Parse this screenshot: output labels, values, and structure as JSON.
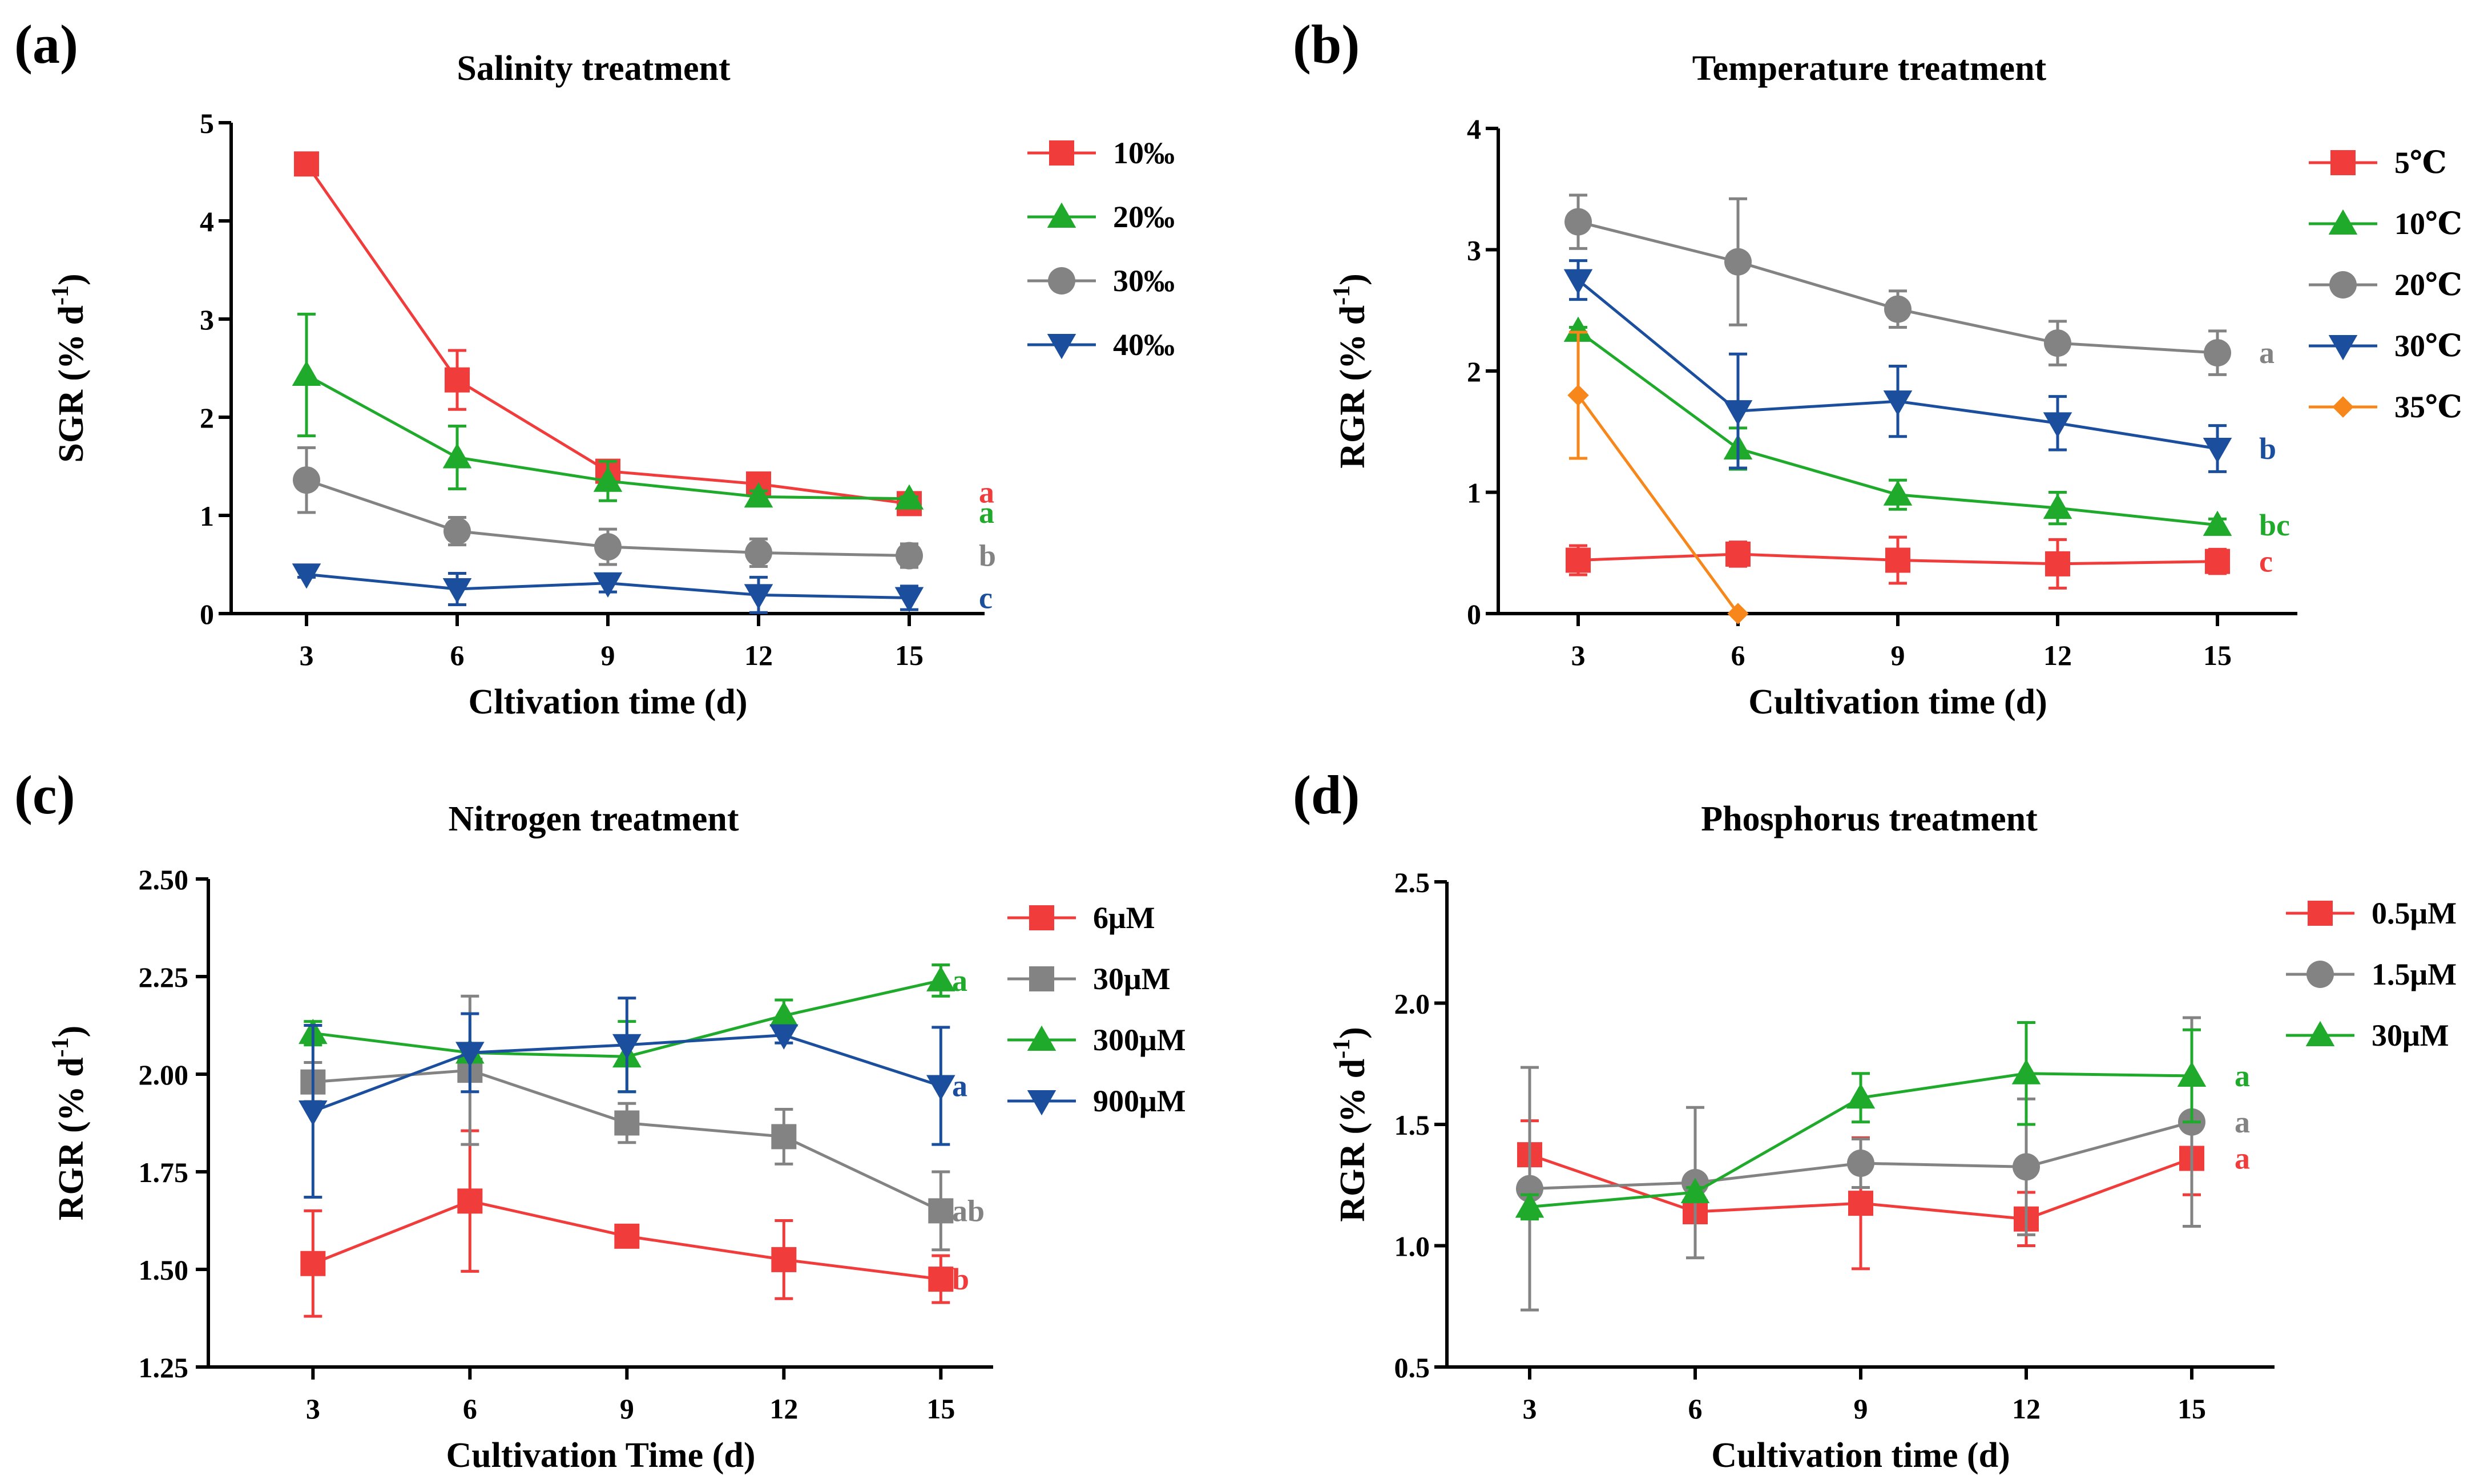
{
  "chart_data": [
    {
      "type": "line",
      "panel_label": "(a)",
      "title": "Salinity treatment",
      "xlabel": "Cltivation time (d)",
      "ylabel": "SGR (% d",
      "ylabel_sup": "-1",
      "ylabel_close": ")",
      "x": [
        3,
        6,
        9,
        12,
        15
      ],
      "xlim": [
        1.5,
        16.5
      ],
      "ylim": [
        0,
        5
      ],
      "yticks": [
        0,
        1,
        2,
        3,
        4,
        5
      ],
      "ytick_labels": [
        "0",
        "1",
        "2",
        "3",
        "4",
        "5"
      ],
      "xtick_labels": [
        "3",
        "6",
        "9",
        "12",
        "15"
      ],
      "series": [
        {
          "name": "10‰",
          "color": "#f13c3c",
          "marker": "square",
          "values": [
            4.58,
            2.38,
            1.45,
            1.32,
            1.12
          ],
          "errors": [
            0,
            0.3,
            0.1,
            0.08,
            0.04
          ],
          "letter": "a"
        },
        {
          "name": "20‰",
          "color": "#1faa2b",
          "marker": "triangle",
          "values": [
            2.43,
            1.59,
            1.35,
            1.19,
            1.17
          ],
          "errors": [
            0.62,
            0.32,
            0.2,
            0.06,
            0.02
          ],
          "letter": "a"
        },
        {
          "name": "30‰",
          "color": "#838383",
          "marker": "circle",
          "values": [
            1.36,
            0.84,
            0.68,
            0.62,
            0.59
          ],
          "errors": [
            0.33,
            0.14,
            0.18,
            0.14,
            0.12
          ],
          "letter": "b"
        },
        {
          "name": "40‰",
          "color": "#1b4f9e",
          "marker": "triangle-down",
          "values": [
            0.4,
            0.25,
            0.31,
            0.19,
            0.16
          ],
          "errors": [
            0.03,
            0.16,
            0.09,
            0.18,
            0.12
          ],
          "letter": "c"
        }
      ]
    },
    {
      "type": "line",
      "panel_label": "(b)",
      "title": "Temperature treatment",
      "xlabel": "Cultivation time (d)",
      "ylabel": "RGR (% d",
      "ylabel_sup": "-1",
      "ylabel_close": ")",
      "x": [
        3,
        6,
        9,
        12,
        15
      ],
      "xlim": [
        1.5,
        16.5
      ],
      "ylim": [
        0,
        4
      ],
      "yticks": [
        0,
        1,
        2,
        3,
        4
      ],
      "ytick_labels": [
        "0",
        "1",
        "2",
        "3",
        "4"
      ],
      "xtick_labels": [
        "3",
        "6",
        "9",
        "12",
        "15"
      ],
      "series": [
        {
          "name": "5℃",
          "color": "#f13c3c",
          "marker": "square",
          "values": [
            0.44,
            0.49,
            0.44,
            0.41,
            0.43
          ],
          "errors": [
            0.12,
            0.1,
            0.19,
            0.2,
            0.1
          ],
          "letter": "c"
        },
        {
          "name": "10℃",
          "color": "#1faa2b",
          "marker": "triangle",
          "values": [
            2.33,
            1.36,
            0.98,
            0.87,
            0.73
          ],
          "errors": [
            0.03,
            0.17,
            0.12,
            0.13,
            0.05
          ],
          "letter": "bc"
        },
        {
          "name": "20℃",
          "color": "#838383",
          "marker": "circle",
          "values": [
            3.23,
            2.9,
            2.51,
            2.23,
            2.15
          ],
          "errors": [
            0.22,
            0.52,
            0.15,
            0.18,
            0.18
          ],
          "letter": "a"
        },
        {
          "name": "30℃",
          "color": "#1b4f9e",
          "marker": "triangle-down",
          "values": [
            2.75,
            1.67,
            1.75,
            1.57,
            1.36
          ],
          "errors": [
            0.16,
            0.47,
            0.29,
            0.22,
            0.19
          ],
          "letter": "b"
        },
        {
          "name": "35℃",
          "color": "#f7871a",
          "marker": "diamond",
          "x": [
            3,
            6
          ],
          "values": [
            1.8,
            0.0
          ],
          "errors": [
            0.52,
            0
          ],
          "letter": ""
        }
      ]
    },
    {
      "type": "line",
      "panel_label": "(c)",
      "title": "Nitrogen treatment",
      "xlabel": "Cultivation Time (d)",
      "ylabel": "RGR (% d",
      "ylabel_sup": "-1",
      "ylabel_close": ")",
      "x": [
        3,
        6,
        9,
        12,
        15
      ],
      "xlim": [
        1,
        16
      ],
      "ylim": [
        1.25,
        2.5
      ],
      "yticks": [
        1.25,
        1.5,
        1.75,
        2.0,
        2.25,
        2.5
      ],
      "ytick_labels": [
        "1.25",
        "1.50",
        "1.75",
        "2.00",
        "2.25",
        "2.50"
      ],
      "xtick_labels": [
        "3",
        "6",
        "9",
        "12",
        "15"
      ],
      "series": [
        {
          "name": "6μM",
          "color": "#f13c3c",
          "marker": "square",
          "values": [
            1.515,
            1.675,
            1.585,
            1.525,
            1.475
          ],
          "errors": [
            0.135,
            0.18,
            0.01,
            0.1,
            0.06
          ],
          "letter": "b"
        },
        {
          "name": "30μM",
          "color": "#838383",
          "marker": "square",
          "values": [
            1.98,
            2.01,
            1.875,
            1.84,
            1.65
          ],
          "errors": [
            0.05,
            0.19,
            0.05,
            0.07,
            0.1
          ],
          "letter": "ab"
        },
        {
          "name": "300μM",
          "color": "#1faa2b",
          "marker": "triangle",
          "values": [
            2.105,
            2.055,
            2.045,
            2.15,
            2.24
          ],
          "errors": [
            0.03,
            0.01,
            0.09,
            0.04,
            0.04
          ],
          "letter": "a"
        },
        {
          "name": "900μM",
          "color": "#1b4f9e",
          "marker": "triangle-down",
          "values": [
            1.905,
            2.055,
            2.075,
            2.1,
            1.97
          ],
          "errors": [
            0.22,
            0.1,
            0.12,
            0.02,
            0.15
          ],
          "letter": "a"
        }
      ]
    },
    {
      "type": "line",
      "panel_label": "(d)",
      "title": "Phosphorus treatment",
      "xlabel": "Cultivation time (d)",
      "ylabel": "RGR (% d",
      "ylabel_sup": "-1",
      "ylabel_close": ")",
      "x": [
        3,
        6,
        9,
        12,
        15
      ],
      "xlim": [
        1.5,
        16.5
      ],
      "ylim": [
        0.5,
        2.5
      ],
      "yticks": [
        0.5,
        1.0,
        1.5,
        2.0,
        2.5
      ],
      "ytick_labels": [
        "0.5",
        "1.0",
        "1.5",
        "2.0",
        "2.5"
      ],
      "xtick_labels": [
        "3",
        "6",
        "9",
        "12",
        "15"
      ],
      "series": [
        {
          "name": "0.5μM",
          "color": "#f13c3c",
          "marker": "square",
          "values": [
            1.375,
            1.14,
            1.175,
            1.11,
            1.36
          ],
          "errors": [
            0.14,
            0.01,
            0.27,
            0.11,
            0.15
          ],
          "letter": "a"
        },
        {
          "name": "1.5μM",
          "color": "#838383",
          "marker": "circle",
          "values": [
            1.235,
            1.26,
            1.34,
            1.325,
            1.51
          ],
          "errors": [
            0.5,
            0.31,
            0.1,
            0.28,
            0.43
          ],
          "letter": "a"
        },
        {
          "name": "30μM",
          "color": "#1faa2b",
          "marker": "triangle",
          "values": [
            1.16,
            1.22,
            1.61,
            1.71,
            1.7
          ],
          "errors": [
            0.05,
            0.02,
            0.1,
            0.21,
            0.19
          ],
          "letter": "a"
        }
      ]
    }
  ]
}
